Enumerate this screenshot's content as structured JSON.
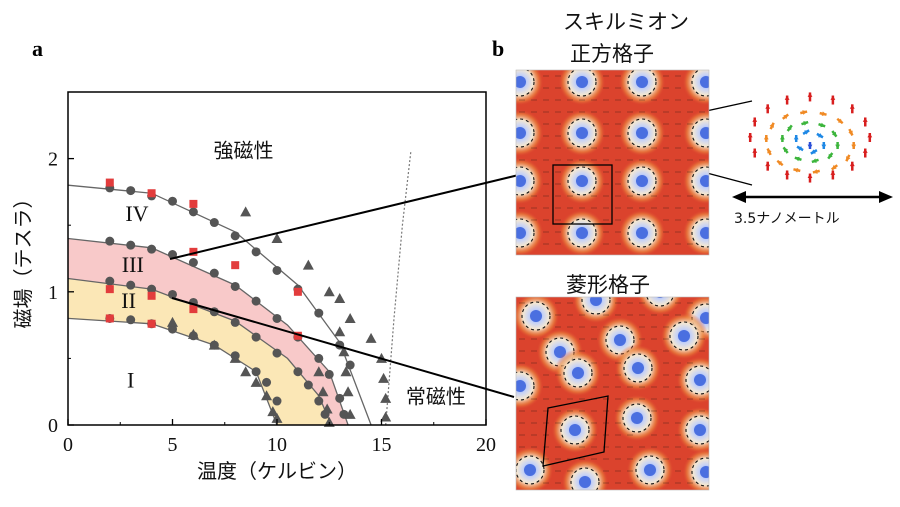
{
  "panels": {
    "a": {
      "label": "a"
    },
    "b": {
      "label": "b"
    }
  },
  "chart_data": {
    "type": "scatter",
    "xlabel": "温度（ケルビン）",
    "ylabel": "磁場（テスラ）",
    "xlim": [
      0,
      20
    ],
    "ylim": [
      0,
      2.5
    ],
    "xticks": [
      0,
      5,
      10,
      15,
      20
    ],
    "yticks": [
      0,
      1,
      2
    ],
    "grid": false,
    "region_labels": {
      "ferromagnetic": "強磁性",
      "IV": "IV",
      "III": "III",
      "II": "II",
      "I": "I",
      "paramagnetic": "常磁性"
    },
    "shaded_regions": [
      {
        "phase": "III",
        "color": "#f8c9c9"
      },
      {
        "phase": "II",
        "color": "#fbe7b6"
      }
    ],
    "series": [
      {
        "marker": "circle",
        "color": "#555555",
        "points": [
          [
            2,
            1.78
          ],
          [
            3,
            1.76
          ],
          [
            4,
            1.72
          ],
          [
            5,
            1.68
          ],
          [
            6,
            1.6
          ],
          [
            7,
            1.52
          ],
          [
            8,
            1.42
          ],
          [
            9,
            1.3
          ],
          [
            10,
            1.16
          ],
          [
            11,
            1.02
          ],
          [
            12,
            0.84
          ],
          [
            13,
            0.6
          ],
          [
            13.5,
            0.45
          ]
        ]
      },
      {
        "marker": "circle",
        "color": "#555555",
        "points": [
          [
            2,
            1.38
          ],
          [
            3,
            1.35
          ],
          [
            4,
            1.32
          ],
          [
            5,
            1.28
          ],
          [
            6,
            1.22
          ],
          [
            7,
            1.14
          ],
          [
            8,
            1.04
          ],
          [
            9,
            0.93
          ],
          [
            10,
            0.8
          ],
          [
            11,
            0.66
          ],
          [
            12,
            0.5
          ],
          [
            12.5,
            0.38
          ],
          [
            13,
            0.2
          ],
          [
            13.2,
            0.08
          ]
        ]
      },
      {
        "marker": "circle",
        "color": "#555555",
        "points": [
          [
            2,
            1.08
          ],
          [
            3,
            1.05
          ],
          [
            4,
            1.02
          ],
          [
            5,
            0.98
          ],
          [
            6,
            0.92
          ],
          [
            7,
            0.85
          ],
          [
            8,
            0.77
          ],
          [
            9,
            0.66
          ],
          [
            10,
            0.54
          ],
          [
            11,
            0.4
          ],
          [
            11.5,
            0.3
          ],
          [
            12,
            0.18
          ],
          [
            12.3,
            0.08
          ]
        ]
      },
      {
        "marker": "circle",
        "color": "#555555",
        "points": [
          [
            2,
            0.8
          ],
          [
            3,
            0.79
          ],
          [
            4,
            0.76
          ],
          [
            5,
            0.72
          ],
          [
            6,
            0.67
          ],
          [
            7,
            0.6
          ],
          [
            8,
            0.52
          ],
          [
            9,
            0.4
          ],
          [
            9.5,
            0.32
          ],
          [
            10,
            0.18
          ]
        ]
      },
      {
        "marker": "square",
        "color": "#e23c3c",
        "points": [
          [
            2,
            1.82
          ],
          [
            4,
            1.74
          ],
          [
            6,
            1.66
          ],
          [
            6,
            1.3
          ],
          [
            8,
            1.2
          ],
          [
            11,
            1.0
          ],
          [
            2,
            1.02
          ],
          [
            4,
            0.97
          ],
          [
            6,
            0.87
          ],
          [
            2,
            0.8
          ],
          [
            4,
            0.76
          ],
          [
            11,
            0.67
          ]
        ]
      },
      {
        "marker": "triangle",
        "color": "#555555",
        "points": [
          [
            8.5,
            1.6
          ],
          [
            10,
            1.4
          ],
          [
            11.5,
            1.2
          ],
          [
            12.5,
            1.0
          ],
          [
            13.5,
            0.8
          ],
          [
            14.5,
            0.65
          ],
          [
            15,
            0.5
          ],
          [
            15.1,
            0.35
          ],
          [
            15.2,
            0.2
          ],
          [
            15.2,
            0.06
          ],
          [
            13,
            0.95
          ],
          [
            13,
            0.7
          ],
          [
            13.2,
            0.55
          ],
          [
            13.3,
            0.4
          ],
          [
            13.4,
            0.25
          ],
          [
            13.5,
            0.08
          ],
          [
            5,
            0.77
          ],
          [
            6,
            0.68
          ],
          [
            7,
            0.6
          ],
          [
            8,
            0.5
          ],
          [
            8.5,
            0.4
          ],
          [
            9,
            0.32
          ],
          [
            9.5,
            0.22
          ],
          [
            9.8,
            0.1
          ],
          [
            10,
            0.05
          ],
          [
            12,
            0.4
          ],
          [
            12.2,
            0.25
          ],
          [
            12.4,
            0.12
          ],
          [
            12.5,
            0.02
          ]
        ]
      }
    ],
    "boundaries": [
      {
        "name": "IV-ferro",
        "points": [
          [
            0,
            1.8
          ],
          [
            4,
            1.74
          ],
          [
            8,
            1.45
          ],
          [
            11,
            1.05
          ],
          [
            13,
            0.62
          ],
          [
            14.5,
            0.0
          ]
        ]
      },
      {
        "name": "III-IV",
        "points": [
          [
            0,
            1.4
          ],
          [
            4,
            1.33
          ],
          [
            8,
            1.05
          ],
          [
            10.5,
            0.75
          ],
          [
            12.5,
            0.4
          ],
          [
            13.4,
            0.0
          ]
        ]
      },
      {
        "name": "II-III",
        "points": [
          [
            0,
            1.1
          ],
          [
            4,
            1.02
          ],
          [
            8,
            0.78
          ],
          [
            10.5,
            0.5
          ],
          [
            12,
            0.22
          ],
          [
            12.6,
            0.0
          ]
        ]
      },
      {
        "name": "I-II",
        "points": [
          [
            0,
            0.8
          ],
          [
            4,
            0.76
          ],
          [
            7,
            0.6
          ],
          [
            9,
            0.4
          ],
          [
            10,
            0.0
          ]
        ]
      },
      {
        "name": "paramagnetic-dotted",
        "points": [
          [
            15.2,
            0.0
          ],
          [
            15.6,
            0.8
          ],
          [
            16,
            1.5
          ],
          [
            16.4,
            2.05
          ]
        ]
      }
    ]
  },
  "lattice_panels": {
    "title_line1": "スキルミオン",
    "square_title": "正方格子",
    "rhombic_title": "菱形格子",
    "scale_bar_label": "3.5ナノメートル"
  }
}
